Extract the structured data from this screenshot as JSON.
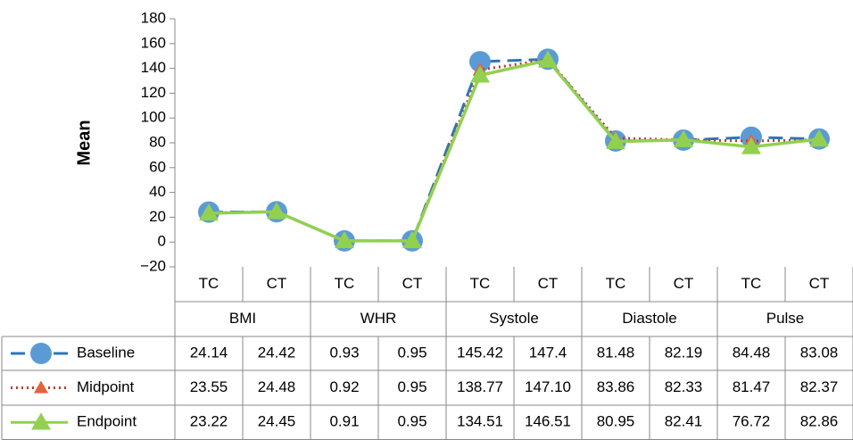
{
  "chart_data": {
    "type": "line",
    "y_label": "Mean",
    "categories": [
      "TC",
      "CT",
      "TC",
      "CT",
      "TC",
      "CT",
      "TC",
      "CT",
      "TC",
      "CT"
    ],
    "groups": [
      "BMI",
      "WHR",
      "Systole",
      "Diastole",
      "Pulse"
    ],
    "ylim": [
      -20,
      180
    ],
    "yticks": [
      {
        "value": -20,
        "label": "−20"
      },
      0,
      20,
      40,
      60,
      80,
      100,
      120,
      140,
      160,
      180
    ],
    "grid": false,
    "series": [
      {
        "name": "Baseline",
        "color": "#2e75b6",
        "marker_color": "#5b9bd5",
        "line_style": "dashed",
        "marker": "circle",
        "values": [
          24.14,
          24.42,
          0.93,
          0.95,
          145.42,
          147.4,
          81.48,
          82.19,
          84.48,
          83.08
        ],
        "value_labels": [
          "24.14",
          "24.42",
          "0.93",
          "0.95",
          "145.42",
          "147.4",
          "81.48",
          "82.19",
          "84.48",
          "83.08"
        ]
      },
      {
        "name": "Midpoint",
        "color": "#c0392b",
        "marker_color": "#e8603c",
        "line_style": "dotted",
        "marker": "triangle",
        "values": [
          23.55,
          24.48,
          0.92,
          0.95,
          138.77,
          147.1,
          83.86,
          82.33,
          81.47,
          82.37
        ],
        "value_labels": [
          "23.55",
          "24.48",
          "0.92",
          "0.95",
          "138.77",
          "147.10",
          "83.86",
          "82.33",
          "81.47",
          "82.37"
        ]
      },
      {
        "name": "Endpoint",
        "color": "#92d050",
        "marker_color": "#92d050",
        "line_style": "solid",
        "marker": "triangle",
        "values": [
          23.22,
          24.45,
          0.91,
          0.95,
          134.51,
          146.51,
          80.95,
          82.41,
          76.72,
          82.86
        ],
        "value_labels": [
          "23.22",
          "24.45",
          "0.91",
          "0.95",
          "134.51",
          "146.51",
          "80.95",
          "82.41",
          "76.72",
          "82.86"
        ]
      }
    ]
  }
}
